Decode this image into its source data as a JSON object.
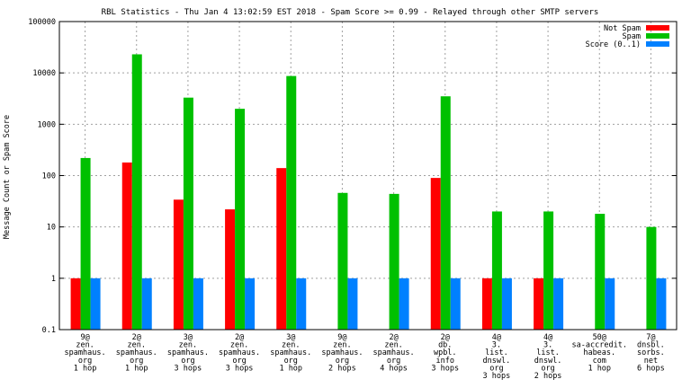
{
  "chart_data": {
    "type": "bar",
    "title": "RBL Statistics - Thu Jan  4 13:02:59 EST 2018 - Spam Score >= 0.99 - Relayed through other SMTP servers",
    "ylabel": "Message Count or Spam Score",
    "xlabel": "",
    "yscale": "log",
    "ylim": [
      0.1,
      100000
    ],
    "yticks": [
      "0.1",
      "1",
      "10",
      "100",
      "1000",
      "10000",
      "100000"
    ],
    "grid": true,
    "legend_position": "top-right",
    "categories": [
      [
        "9@",
        "zen.",
        "spamhaus.",
        "org",
        "1 hop"
      ],
      [
        "2@",
        "zen.",
        "spamhaus.",
        "org",
        "1 hop"
      ],
      [
        "3@",
        "zen.",
        "spamhaus.",
        "org",
        "3 hops"
      ],
      [
        "2@",
        "zen.",
        "spamhaus.",
        "org",
        "3 hops"
      ],
      [
        "3@",
        "zen.",
        "spamhaus.",
        "org",
        "1 hop"
      ],
      [
        "9@",
        "zen.",
        "spamhaus.",
        "org",
        "2 hops"
      ],
      [
        "2@",
        "zen.",
        "spamhaus.",
        "org",
        "4 hops"
      ],
      [
        "2@",
        "db.",
        "wpbl.",
        "info",
        "3 hops"
      ],
      [
        "4@",
        "3.",
        "list.",
        "dnswl.",
        "org",
        "3 hops"
      ],
      [
        "4@",
        "3.",
        "list.",
        "dnswl.",
        "org",
        "2 hops"
      ],
      [
        "50@",
        "sa-accredit.",
        "habeas.",
        "com",
        "1 hop"
      ],
      [
        "7@",
        "dnsbl.",
        "sorbs.",
        "net",
        "6 hops"
      ]
    ],
    "series": [
      {
        "name": "Not Spam",
        "color": "#ff0000",
        "values": [
          1,
          180,
          34,
          22,
          140,
          null,
          null,
          90,
          1,
          1,
          null,
          null
        ]
      },
      {
        "name": "Spam",
        "color": "#00c000",
        "values": [
          220,
          23000,
          3300,
          2000,
          8700,
          46,
          44,
          3500,
          20,
          20,
          18,
          10
        ]
      },
      {
        "name": "Score (0..1)",
        "color": "#0080ff",
        "values": [
          1,
          1,
          1,
          1,
          1,
          1,
          1,
          1,
          1,
          1,
          1,
          1
        ]
      }
    ]
  }
}
